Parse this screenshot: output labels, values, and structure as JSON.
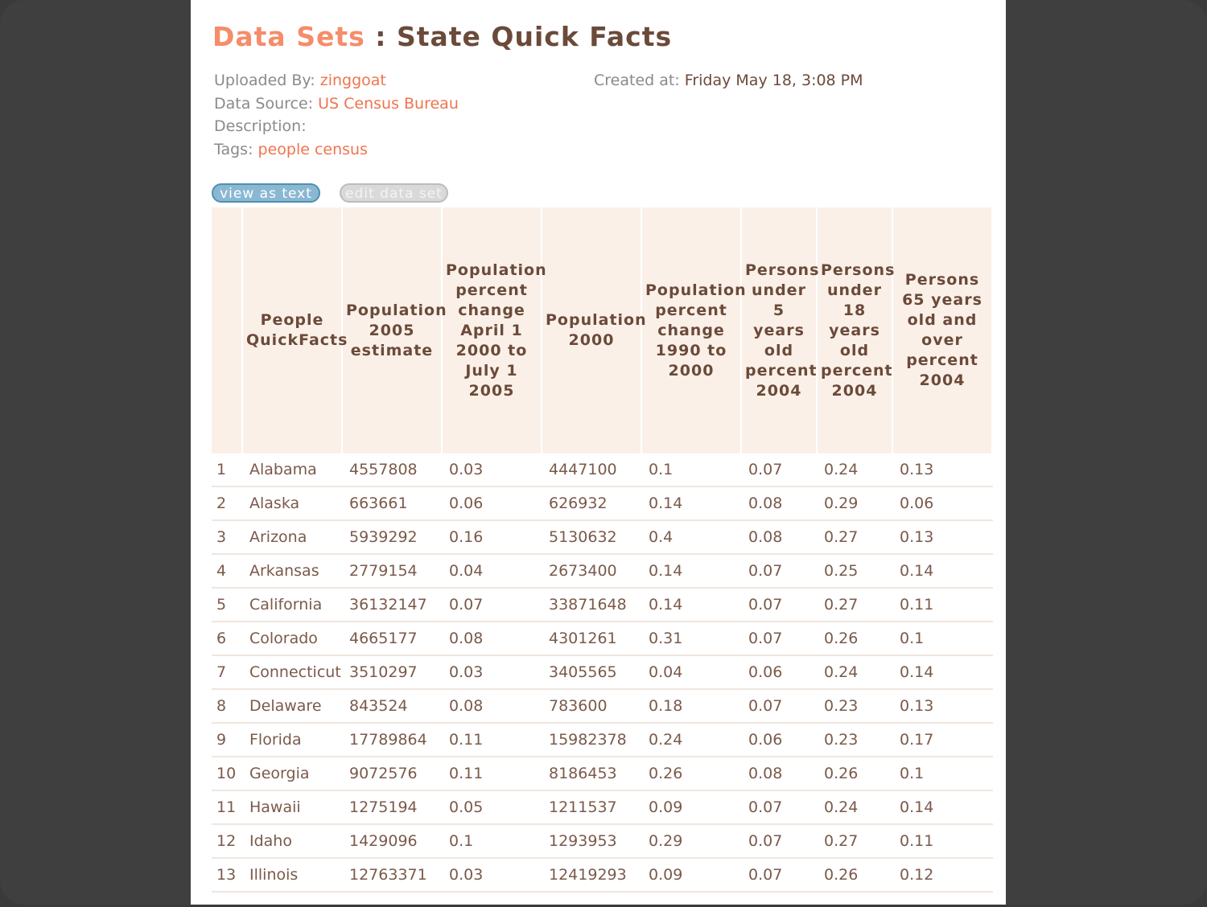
{
  "header": {
    "breadcrumb_link": "Data Sets",
    "separator": " : ",
    "title": "State Quick Facts"
  },
  "meta": {
    "uploaded_by_label": "Uploaded By:",
    "uploaded_by": "zinggoat",
    "data_source_label": "Data Source:",
    "data_source": "US Census Bureau",
    "description_label": "Description:",
    "description": "",
    "tags_label": "Tags:",
    "tags": "people census",
    "created_label": "Created at:",
    "created": "Friday May 18, 3:08 PM"
  },
  "buttons": {
    "view_as_text": "view as text",
    "edit_data_set": "edit data set"
  },
  "table": {
    "columns": [
      "",
      "People QuickFacts",
      "Population 2005 estimate",
      "Population percent change April 1 2000 to July 1 2005",
      "Population 2000",
      "Population percent change 1990 to 2000",
      "Persons under 5 years old percent 2004",
      "Persons under 18 years old percent 2004",
      "Persons 65 years old and over percent 2004"
    ],
    "rows": [
      [
        "1",
        "Alabama",
        "4557808",
        "0.03",
        "4447100",
        "0.1",
        "0.07",
        "0.24",
        "0.13"
      ],
      [
        "2",
        "Alaska",
        "663661",
        "0.06",
        "626932",
        "0.14",
        "0.08",
        "0.29",
        "0.06"
      ],
      [
        "3",
        "Arizona",
        "5939292",
        "0.16",
        "5130632",
        "0.4",
        "0.08",
        "0.27",
        "0.13"
      ],
      [
        "4",
        "Arkansas",
        "2779154",
        "0.04",
        "2673400",
        "0.14",
        "0.07",
        "0.25",
        "0.14"
      ],
      [
        "5",
        "California",
        "36132147",
        "0.07",
        "33871648",
        "0.14",
        "0.07",
        "0.27",
        "0.11"
      ],
      [
        "6",
        "Colorado",
        "4665177",
        "0.08",
        "4301261",
        "0.31",
        "0.07",
        "0.26",
        "0.1"
      ],
      [
        "7",
        "Connecticut",
        "3510297",
        "0.03",
        "3405565",
        "0.04",
        "0.06",
        "0.24",
        "0.14"
      ],
      [
        "8",
        "Delaware",
        "843524",
        "0.08",
        "783600",
        "0.18",
        "0.07",
        "0.23",
        "0.13"
      ],
      [
        "9",
        "Florida",
        "17789864",
        "0.11",
        "15982378",
        "0.24",
        "0.06",
        "0.23",
        "0.17"
      ],
      [
        "10",
        "Georgia",
        "9072576",
        "0.11",
        "8186453",
        "0.26",
        "0.08",
        "0.26",
        "0.1"
      ],
      [
        "11",
        "Hawaii",
        "1275194",
        "0.05",
        "1211537",
        "0.09",
        "0.07",
        "0.24",
        "0.14"
      ],
      [
        "12",
        "Idaho",
        "1429096",
        "0.1",
        "1293953",
        "0.29",
        "0.07",
        "0.27",
        "0.11"
      ],
      [
        "13",
        "Illinois",
        "12763371",
        "0.03",
        "12419293",
        "0.09",
        "0.07",
        "0.26",
        "0.12"
      ]
    ]
  }
}
